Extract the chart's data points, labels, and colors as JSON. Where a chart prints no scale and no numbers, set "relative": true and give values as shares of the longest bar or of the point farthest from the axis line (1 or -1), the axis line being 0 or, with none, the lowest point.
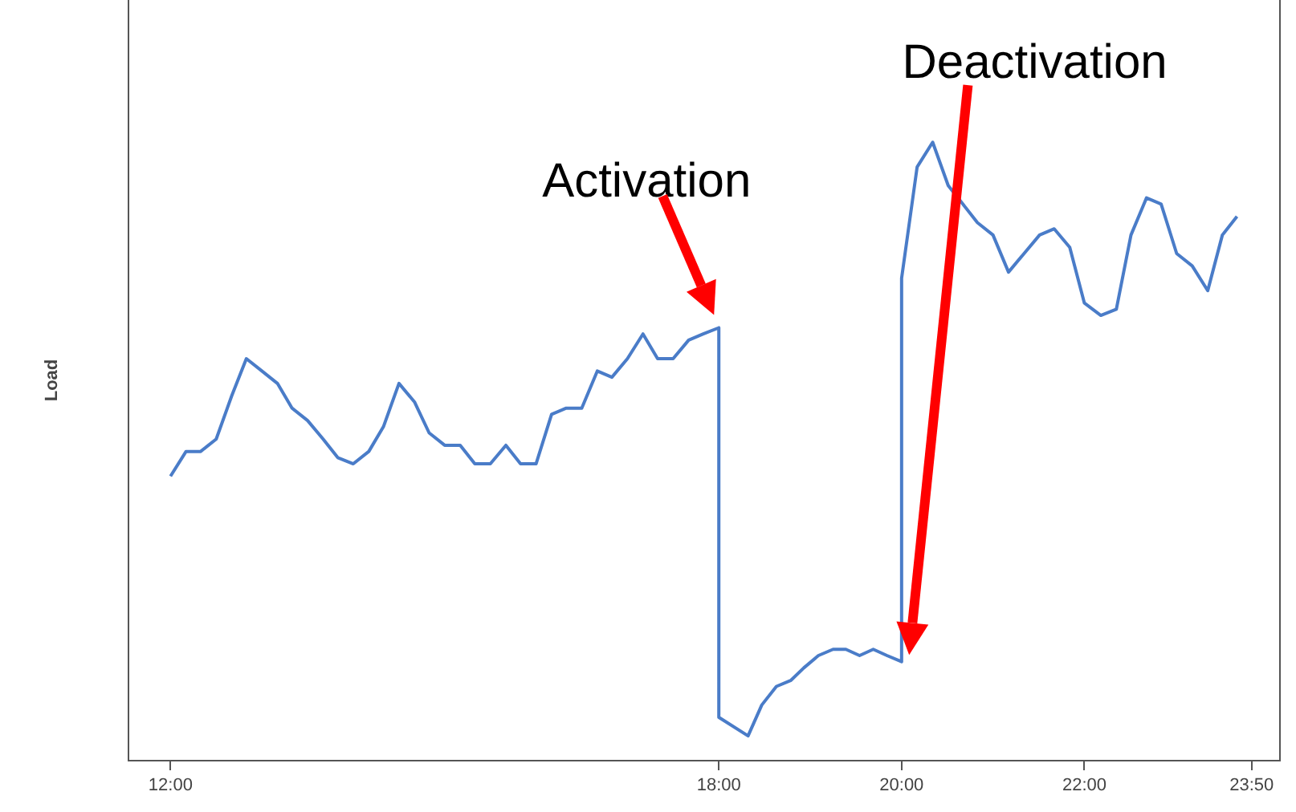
{
  "chart_data": {
    "type": "line",
    "ylabel": "Load",
    "relative": true,
    "grid": false,
    "legend": false,
    "xlim": [
      11.54,
      24.14
    ],
    "xticks": [
      {
        "value": 12,
        "label": "12:00"
      },
      {
        "value": 18,
        "label": "18:00"
      },
      {
        "value": 20,
        "label": "20:00"
      },
      {
        "value": 22,
        "label": "22:00"
      },
      {
        "value": 23.83,
        "label": "23:50"
      }
    ],
    "x": [
      12,
      12.17,
      12.33,
      12.5,
      12.67,
      12.83,
      13,
      13.17,
      13.33,
      13.5,
      13.67,
      13.83,
      14,
      14.17,
      14.33,
      14.5,
      14.67,
      14.83,
      15,
      15.17,
      15.33,
      15.5,
      15.67,
      15.83,
      16,
      16.17,
      16.33,
      16.5,
      16.67,
      16.83,
      17,
      17.17,
      17.33,
      17.5,
      17.67,
      17.83,
      18,
      18,
      18.32,
      18.47,
      18.63,
      18.79,
      18.93,
      19.09,
      19.25,
      19.39,
      19.54,
      19.69,
      19.84,
      20,
      20,
      20.17,
      20.34,
      20.51,
      20.67,
      20.83,
      21,
      21.17,
      21.34,
      21.51,
      21.67,
      21.84,
      22,
      22.18,
      22.35,
      22.51,
      22.68,
      22.84,
      23.01,
      23.18,
      23.35,
      23.51,
      23.67
    ],
    "series": [
      {
        "color": "#4a7cc8",
        "values": [
          0.46,
          0.5,
          0.5,
          0.52,
          0.59,
          0.65,
          0.63,
          0.61,
          0.57,
          0.55,
          0.52,
          0.49,
          0.48,
          0.5,
          0.54,
          0.61,
          0.58,
          0.53,
          0.51,
          0.51,
          0.48,
          0.48,
          0.51,
          0.48,
          0.48,
          0.56,
          0.57,
          0.57,
          0.63,
          0.62,
          0.65,
          0.69,
          0.65,
          0.65,
          0.68,
          0.69,
          0.7,
          0.07,
          0.04,
          0.09,
          0.12,
          0.13,
          0.15,
          0.17,
          0.18,
          0.18,
          0.17,
          0.18,
          0.17,
          0.16,
          0.78,
          0.96,
          1.0,
          0.93,
          0.9,
          0.87,
          0.85,
          0.79,
          0.82,
          0.85,
          0.86,
          0.83,
          0.74,
          0.72,
          0.73,
          0.85,
          0.91,
          0.9,
          0.82,
          0.8,
          0.76,
          0.85,
          0.88
        ]
      }
    ],
    "annotations": [
      {
        "text": "Activation",
        "x": 18,
        "y": 0.7
      },
      "Deactivation"
    ]
  }
}
